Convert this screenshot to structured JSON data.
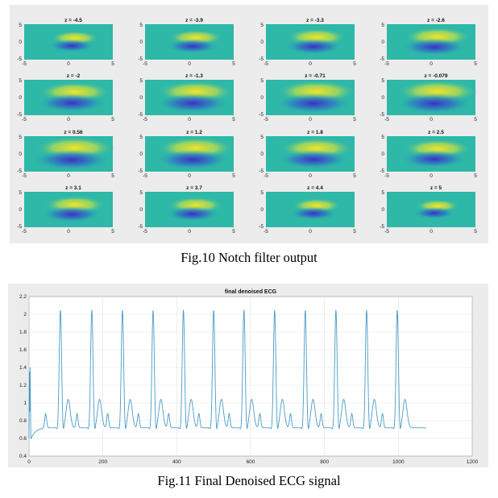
{
  "figure10": {
    "caption": "Fig.10  Notch filter output",
    "panel_titles": [
      "z = -4.5",
      "z = -3.9",
      "z = -3.3",
      "z = -2.6",
      "z = -2",
      "z = -1.3",
      "z = -0.71",
      "z = -0.079",
      "z = 0.56",
      "z = 1.2",
      "z = 1.8",
      "z = 2.5",
      "z = 3.1",
      "z = 3.7",
      "z = 4.4",
      "z = 5"
    ],
    "z_values": [
      -4.5,
      -3.9,
      -3.3,
      -2.6,
      -2,
      -1.3,
      -0.71,
      -0.079,
      0.56,
      1.2,
      1.8,
      2.5,
      3.1,
      3.7,
      4.4,
      5
    ],
    "x_ticks": [
      "-5",
      "0",
      "5"
    ],
    "y_ticks": [
      "5",
      "0",
      "-5"
    ],
    "colors": {
      "background": "#2db8a8",
      "positive_lobe": "#f5e422",
      "negative_lobe": "#3d2fc4"
    }
  },
  "figure11": {
    "caption": "Fig.11 Final Denoised ECG signal",
    "chart_data": {
      "type": "line",
      "title": "final denoised ECG",
      "xlabel": "",
      "ylabel": "",
      "xlim": [
        0,
        1200
      ],
      "ylim": [
        0.4,
        2.2
      ],
      "x_ticks": [
        0,
        200,
        400,
        600,
        800,
        1000,
        1200
      ],
      "y_ticks": [
        0.4,
        0.6,
        0.8,
        1,
        1.2,
        1.4,
        1.6,
        1.8,
        2,
        2.2
      ],
      "x_tick_labels": [
        "0",
        "200",
        "400",
        "600",
        "800",
        "1000",
        "1200"
      ],
      "y_tick_labels": [
        "0.4",
        "0.6",
        "0.8",
        "1",
        "1.2",
        "1.4",
        "1.6",
        "1.8",
        "2",
        "2.2"
      ],
      "grid": true,
      "series_color": "#4a9bc8",
      "beat_peaks_x": [
        85,
        170,
        253,
        336,
        418,
        500,
        582,
        665,
        748,
        831,
        914,
        997
      ],
      "peak_value": 2.05,
      "baseline_value": 0.72,
      "p_wave_value": 0.88,
      "t_wave_value": 1.04,
      "trough_value": 0.6,
      "signal_end_x": 1075
    }
  }
}
